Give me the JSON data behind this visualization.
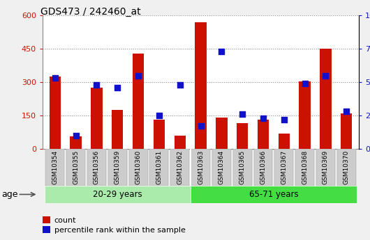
{
  "title": "GDS473 / 242460_at",
  "samples": [
    "GSM10354",
    "GSM10355",
    "GSM10356",
    "GSM10359",
    "GSM10360",
    "GSM10361",
    "GSM10362",
    "GSM10363",
    "GSM10364",
    "GSM10365",
    "GSM10366",
    "GSM10367",
    "GSM10368",
    "GSM10369",
    "GSM10370"
  ],
  "counts": [
    325,
    55,
    275,
    175,
    430,
    130,
    60,
    570,
    140,
    115,
    130,
    70,
    305,
    450,
    160
  ],
  "percentiles": [
    53,
    10,
    48,
    46,
    55,
    25,
    48,
    17,
    73,
    26,
    23,
    22,
    49,
    55,
    28
  ],
  "groups": [
    {
      "label": "20-29 years",
      "start": 0,
      "end": 6,
      "color": "#aaeaaa"
    },
    {
      "label": "65-71 years",
      "start": 7,
      "end": 14,
      "color": "#44dd44"
    }
  ],
  "bar_color": "#CC1100",
  "dot_color": "#1111CC",
  "ylim_left": [
    0,
    600
  ],
  "ylim_right": [
    0,
    100
  ],
  "yticks_left": [
    0,
    150,
    300,
    450,
    600
  ],
  "yticks_right": [
    0,
    25,
    50,
    75,
    100
  ],
  "ylabel_left_color": "#CC1100",
  "ylabel_right_color": "#1111CC",
  "plot_bg": "#ffffff",
  "age_label": "age",
  "legend_count": "count",
  "legend_percentile": "percentile rank within the sample",
  "xtick_bg": "#cccccc",
  "group_divider": 7
}
